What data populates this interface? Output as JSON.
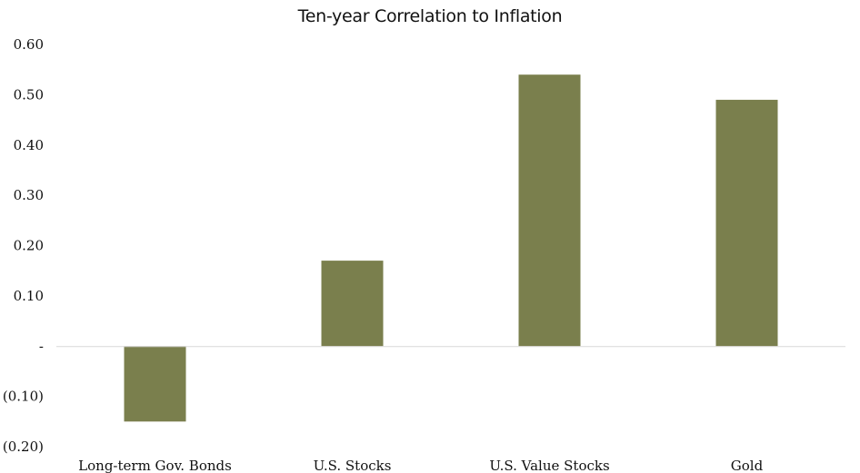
{
  "chart_data": {
    "type": "bar",
    "title": "Ten-year Correlation to Inflation",
    "xlabel": "",
    "ylabel": "",
    "categories": [
      "Long-term Gov. Bonds",
      "U.S. Stocks",
      "U.S. Value Stocks",
      "Gold"
    ],
    "values": [
      -0.15,
      0.17,
      0.54,
      0.49
    ],
    "ylim": [
      -0.2,
      0.6
    ],
    "yticks": [
      0.6,
      0.5,
      0.4,
      0.3,
      0.2,
      0.1,
      0.0,
      -0.1,
      -0.2
    ],
    "ytick_labels": [
      "0.60",
      "0.50",
      "0.40",
      "0.30",
      "0.20",
      "0.10",
      "-",
      "(0.10)",
      "(0.20)"
    ],
    "bar_color": "#7a7f4d",
    "baseline_color": "#d9d9d9",
    "grid": false,
    "legend": "none"
  }
}
